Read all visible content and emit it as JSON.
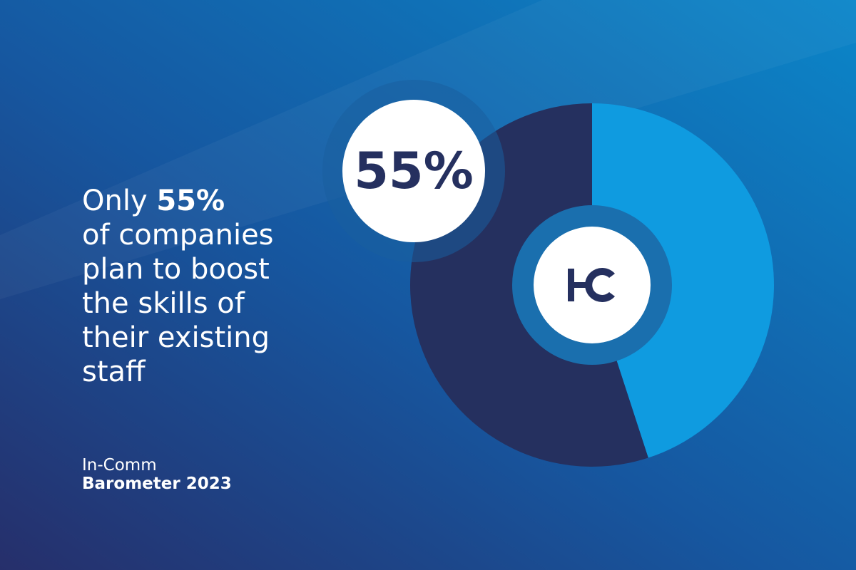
{
  "chart_data": {
    "type": "pie",
    "values": [
      45,
      55
    ],
    "value_labels": [
      null,
      "55%"
    ],
    "colors": [
      "#0f9be0",
      "#25305f"
    ],
    "title": {
      "lead": "Only",
      "highlight": "55%",
      "lines": [
        "of companies",
        "plan to boost",
        "the skills of",
        "their existing",
        "staff"
      ]
    },
    "source": [
      "In-Comm",
      "Barometer 2023"
    ]
  }
}
